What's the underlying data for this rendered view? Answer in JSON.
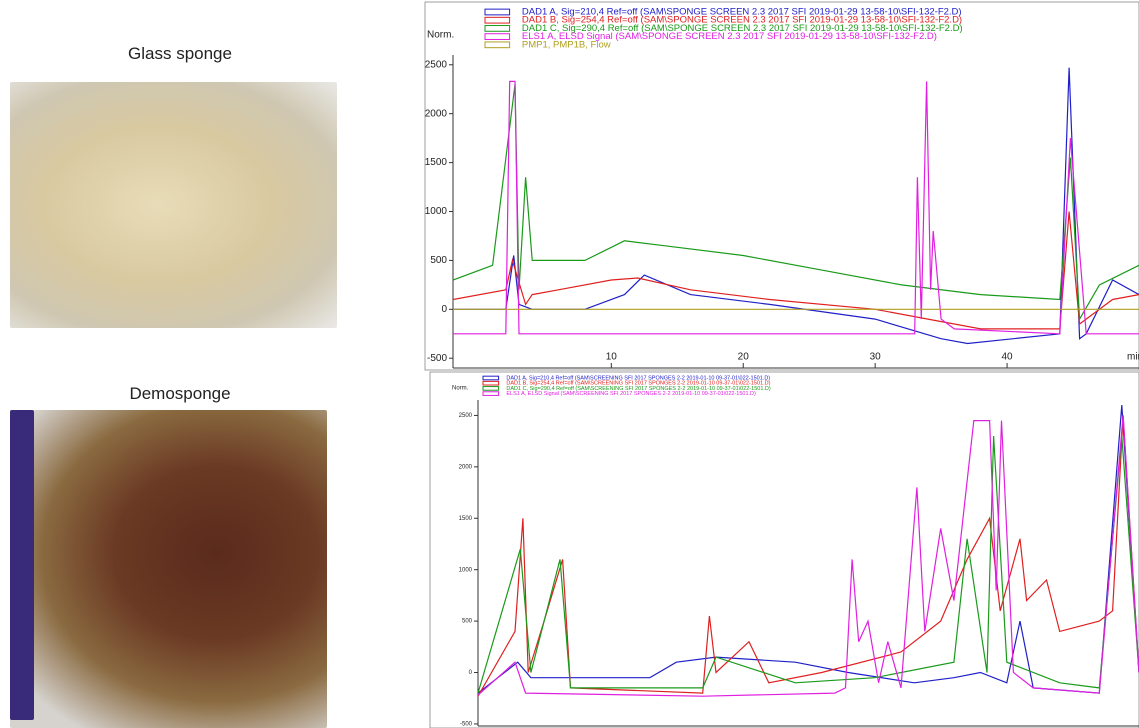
{
  "photos": [
    {
      "label": "Glass sponge"
    },
    {
      "label": "Demosponge"
    }
  ],
  "chart_data": [
    {
      "type": "line",
      "y_label": "Norm.",
      "x_label": "min",
      "xlim": [
        -2,
        50
      ],
      "xticks": [
        10,
        20,
        30,
        40
      ],
      "ylim": [
        -600,
        2600
      ],
      "yticks": [
        -500,
        0,
        500,
        1000,
        1500,
        2000,
        2500
      ],
      "series": [
        {
          "name": "DAD1 A, Sig=210,4 Ref=off (SAM\\SPONGE SCREEN 2.3 2017 SFI 2019-01-29 13-58-10\\SFI-132-F2.D)",
          "color": "#2020c8",
          "x": [
            -2,
            2,
            2.6,
            3,
            4,
            8,
            11,
            12.5,
            16,
            22,
            30,
            35,
            37,
            44,
            44.7,
            45.5,
            46,
            48,
            50
          ],
          "values": [
            0,
            0,
            550,
            50,
            0,
            0,
            150,
            350,
            150,
            50,
            -100,
            -300,
            -350,
            -250,
            2470,
            -300,
            -250,
            300,
            150
          ]
        },
        {
          "name": "DAD1 B, Sig=254,4 Ref=off (SAM\\SPONGE SCREEN 2.3 2017 SFI 2019-01-29 13-58-10\\SFI-132-F2.D)",
          "color": "#e02020",
          "x": [
            -2,
            2,
            2.5,
            3.5,
            4,
            6,
            10,
            12,
            16,
            22,
            30,
            34,
            38,
            44,
            44.7,
            45.5,
            48,
            50
          ],
          "values": [
            100,
            200,
            500,
            50,
            150,
            200,
            300,
            320,
            200,
            100,
            0,
            -100,
            -200,
            -200,
            1000,
            -150,
            100,
            150
          ]
        },
        {
          "name": "DAD1 C, Sig=290,4 Ref=off (SAM\\SPONGE SCREEN 2.3 2017 SFI 2019-01-29 13-58-10\\SFI-132-F2.D)",
          "color": "#1a9a1a",
          "x": [
            -2,
            1,
            2.7,
            3,
            3.5,
            4,
            8,
            11,
            14,
            20,
            26,
            32,
            38,
            44,
            44.8,
            45.5,
            47,
            50
          ],
          "values": [
            300,
            450,
            2300,
            200,
            1350,
            500,
            500,
            700,
            650,
            550,
            400,
            250,
            150,
            100,
            1550,
            -100,
            250,
            450
          ]
        },
        {
          "name": "ELS1 A, ELSD Signal (SAM\\SPONGE SCREEN 2.3 2017 SFI 2019-01-29 13-58-10\\SFI-132-F2.D)",
          "color": "#e020e0",
          "x": [
            -2,
            2,
            2.3,
            2.7,
            3,
            33,
            33.2,
            33.5,
            33.9,
            34.2,
            34.4,
            35,
            36,
            44,
            44.8,
            46,
            50
          ],
          "values": [
            -250,
            -250,
            2330,
            2330,
            -250,
            -250,
            1350,
            -100,
            2330,
            200,
            800,
            -100,
            -200,
            -250,
            1750,
            -250,
            -250
          ]
        },
        {
          "name": "PMP1, PMP1B, Flow",
          "color": "#b0a020",
          "x": [
            -2,
            50
          ],
          "values": [
            0,
            0
          ]
        }
      ]
    },
    {
      "type": "line",
      "y_label": "Norm.",
      "xlim": [
        0,
        50
      ],
      "ylim": [
        -520,
        2650
      ],
      "yticks": [
        -500,
        0,
        500,
        1000,
        1500,
        2000,
        2500
      ],
      "series": [
        {
          "name": "DAD1 A, Sig=210,4 Ref=off (SAM\\SCREENING SFI 2017 SPONGES 2-2 2019-01-10 09-37-01\\022-1501.D)",
          "color": "#2020c8",
          "x": [
            0,
            3,
            4,
            13,
            15,
            18,
            24,
            28,
            33,
            36,
            38,
            40,
            41,
            42,
            47,
            48.7,
            50
          ],
          "values": [
            -200,
            100,
            -50,
            -50,
            100,
            150,
            100,
            0,
            -100,
            -50,
            0,
            -100,
            500,
            -150,
            -200,
            2600,
            0
          ]
        },
        {
          "name": "DAD1 B, Sig=254,4 Ref=off (SAM\\SCREENING SFI 2017 SPONGES 2-2 2019-01-10 09-37-01\\022-1501.D)",
          "color": "#e02020",
          "x": [
            0,
            2.8,
            3.4,
            3.8,
            5,
            6.4,
            7,
            17,
            17.5,
            18,
            20.5,
            22,
            26,
            32,
            35,
            37,
            38.7,
            39.5,
            41,
            41.5,
            43,
            44,
            47,
            48,
            48.8,
            50
          ],
          "values": [
            -230,
            400,
            1500,
            0,
            500,
            1100,
            -150,
            -200,
            550,
            0,
            300,
            -100,
            0,
            200,
            500,
            1100,
            1500,
            600,
            1300,
            700,
            900,
            400,
            500,
            600,
            2500,
            0
          ]
        },
        {
          "name": "DAD1 C, Sig=290,4 Ref=off (SAM\\SCREENING SFI 2017 SPONGES 2-2 2019-01-10 09-37-01\\022-1501.D)",
          "color": "#1a9a1a",
          "x": [
            0,
            3.2,
            4,
            6.2,
            7,
            17,
            18,
            24,
            30,
            36,
            37,
            38.5,
            39,
            40,
            44,
            47,
            48.7,
            50
          ],
          "values": [
            -200,
            1200,
            0,
            1100,
            -150,
            -150,
            150,
            -100,
            -50,
            100,
            1300,
            0,
            2300,
            100,
            -100,
            -150,
            2300,
            0
          ]
        },
        {
          "name": "ELS1 A, ELSD Signal (SAM\\SCREENING SFI 2017 SPONGES 2-2 2019-01-10 09-37-01\\022-1501.D)",
          "color": "#e020e0",
          "x": [
            0,
            2.8,
            3.6,
            17,
            27,
            27.8,
            28.3,
            28.8,
            29.5,
            30.3,
            31,
            32,
            33.2,
            33.8,
            35,
            36,
            37.5,
            38.7,
            39.2,
            39.6,
            40.5,
            42,
            47,
            48.8,
            50
          ],
          "values": [
            -220,
            100,
            -200,
            -230,
            -200,
            -150,
            1100,
            300,
            500,
            -100,
            300,
            -150,
            1800,
            400,
            1400,
            700,
            2450,
            2450,
            800,
            2450,
            0,
            -150,
            -200,
            2500,
            0
          ]
        }
      ]
    }
  ]
}
